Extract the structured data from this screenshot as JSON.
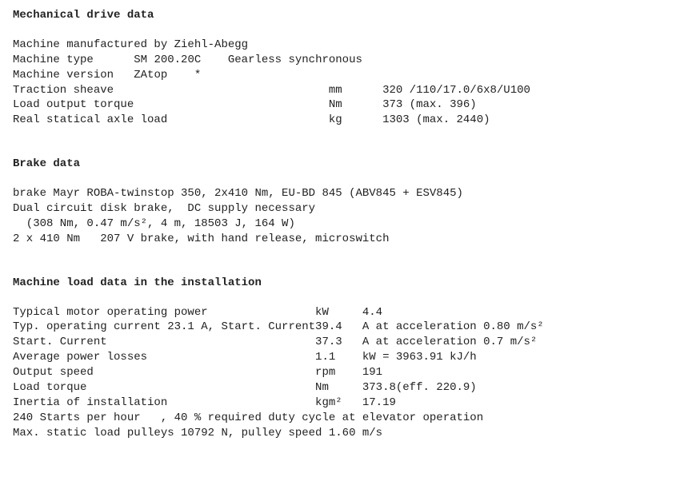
{
  "colors": {
    "background": "#ffffff",
    "text": "#222222"
  },
  "typography": {
    "font_family": "Consolas, Courier New, monospace",
    "font_size_pt": 10.5,
    "line_height": 1.35,
    "title_weight": "bold"
  },
  "sections": {
    "mechanical": {
      "title": "Mechanical drive data",
      "manufacturer_line": "Machine manufactured by Ziehl-Abegg",
      "machine_type": {
        "label": "Machine type",
        "value1": "SM 200.20C",
        "value2": "Gearless synchronous"
      },
      "machine_version": {
        "label": "Machine version",
        "value1": "ZAtop",
        "value2": "*"
      },
      "rows": [
        {
          "label": "Traction sheave",
          "unit": "mm",
          "value": "320 /110/17.0/6x8/U100"
        },
        {
          "label": "Load output torque",
          "unit": "Nm",
          "value": "373 (max. 396)"
        },
        {
          "label": "Real statical axle load",
          "unit": "kg",
          "value": "1303 (max. 2440)"
        }
      ]
    },
    "brake": {
      "title": "Brake data",
      "lines": [
        "brake Mayr ROBA-twinstop 350, 2x410 Nm, EU-BD 845 (ABV845 + ESV845)",
        "Dual circuit disk brake,  DC supply necessary",
        "  (308 Nm, 0.47 m/s², 4 m, 18503 J, 164 W)",
        "2 x 410 Nm   207 V brake, with hand release, microswitch"
      ]
    },
    "load": {
      "title": "Machine load data in the installation",
      "rows": [
        {
          "label": "Typical motor operating power",
          "unit": "kW",
          "value": "4.4"
        },
        {
          "label": "Typ. operating current 23.1 A, Start. Current",
          "unit": "39.4",
          "value": "A at acceleration 0.80 m/s²"
        },
        {
          "label": "Start. Current",
          "unit": "37.3",
          "value": "A at acceleration 0.7 m/s²"
        },
        {
          "label": "Average power losses",
          "unit": "1.1",
          "value": "kW = 3963.91 kJ/h"
        },
        {
          "label": "Output speed",
          "unit": "rpm",
          "value": "191"
        },
        {
          "label": "Load torque",
          "unit": "Nm",
          "value": "373.8(eff. 220.9)"
        },
        {
          "label": "Inertia of installation",
          "unit": "kgm²",
          "value": "17.19"
        }
      ],
      "footer": [
        "240 Starts per hour   , 40 % required duty cycle at elevator operation",
        "Max. static load pulleys 10792 N, pulley speed 1.60 m/s"
      ]
    }
  }
}
